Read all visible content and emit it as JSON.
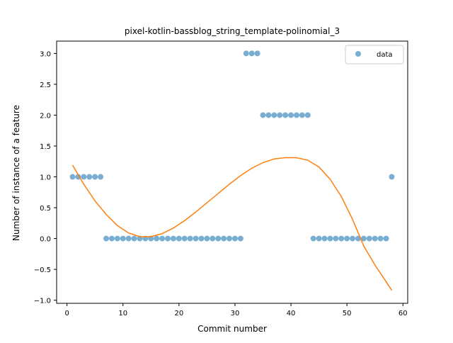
{
  "chart_data": {
    "type": "scatter",
    "title": "pixel-kotlin-bassblog_string_template-polinomial_3",
    "xlabel": "Commit number",
    "ylabel": "Number of instance of a feature",
    "xlim": [
      -1.85,
      60.85
    ],
    "ylim": [
      -1.05,
      3.2
    ],
    "xticks": [
      0,
      10,
      20,
      30,
      40,
      50,
      60
    ],
    "yticks": [
      -1.0,
      -0.5,
      0.0,
      0.5,
      1.0,
      1.5,
      2.0,
      2.5,
      3.0
    ],
    "xtick_labels": [
      "0",
      "10",
      "20",
      "30",
      "40",
      "50",
      "60"
    ],
    "ytick_labels": [
      "−1.0",
      "−0.5",
      "0.0",
      "0.5",
      "1.0",
      "1.5",
      "2.0",
      "2.5",
      "3.0"
    ],
    "grid": false,
    "legend_position": "top-right",
    "series": [
      {
        "name": "data",
        "kind": "scatter",
        "color": "#1f77b4",
        "x": [
          1,
          2,
          3,
          4,
          5,
          6,
          7,
          8,
          9,
          10,
          11,
          12,
          13,
          14,
          15,
          16,
          17,
          18,
          19,
          20,
          21,
          22,
          23,
          24,
          25,
          26,
          27,
          28,
          29,
          30,
          31,
          32,
          33,
          34,
          35,
          36,
          37,
          38,
          39,
          40,
          41,
          42,
          43,
          44,
          45,
          46,
          47,
          48,
          49,
          50,
          51,
          52,
          53,
          54,
          55,
          56,
          57,
          58
        ],
        "y": [
          1,
          1,
          1,
          1,
          1,
          1,
          0,
          0,
          0,
          0,
          0,
          0,
          0,
          0,
          0,
          0,
          0,
          0,
          0,
          0,
          0,
          0,
          0,
          0,
          0,
          0,
          0,
          0,
          0,
          0,
          0,
          3,
          3,
          3,
          2,
          2,
          2,
          2,
          2,
          2,
          2,
          2,
          2,
          0,
          0,
          0,
          0,
          0,
          0,
          0,
          0,
          0,
          0,
          0,
          0,
          0,
          0,
          1
        ]
      },
      {
        "kind": "line",
        "color": "#ff7f0e",
        "x": [
          1,
          3,
          5,
          7,
          9,
          11,
          13,
          15,
          17,
          19,
          21,
          23,
          25,
          27,
          29,
          31,
          33,
          35,
          37,
          39,
          41,
          43,
          45,
          47,
          49,
          51,
          53,
          55,
          57,
          58
        ],
        "y": [
          1.19,
          0.88,
          0.61,
          0.39,
          0.21,
          0.09,
          0.03,
          0.03,
          0.08,
          0.17,
          0.29,
          0.43,
          0.58,
          0.73,
          0.88,
          1.02,
          1.14,
          1.23,
          1.29,
          1.31,
          1.31,
          1.27,
          1.16,
          0.96,
          0.68,
          0.31,
          -0.12,
          -0.43,
          -0.7,
          -0.84
        ]
      }
    ]
  }
}
